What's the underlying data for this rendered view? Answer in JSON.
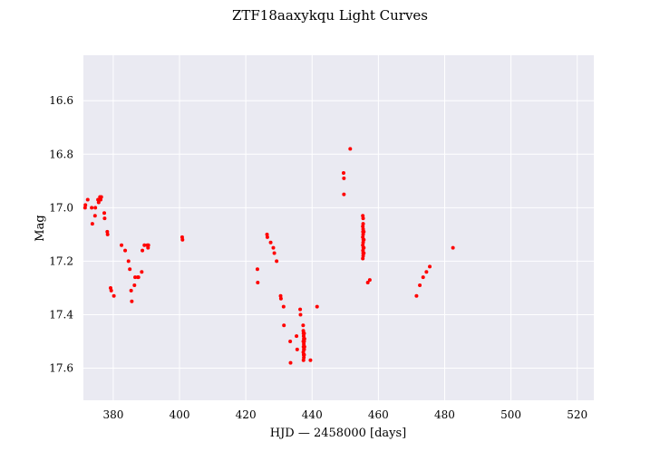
{
  "chart_data": {
    "type": "scatter",
    "title": "ZTF18aaxykqu Light Curves",
    "xlabel": "HJD — 2458000 [days]",
    "ylabel": "Mag",
    "xlim": [
      371,
      525
    ],
    "ylim": [
      17.72,
      16.43
    ],
    "y_inverted": true,
    "grid": true,
    "background": "#eaeaf2",
    "grid_color": "#ffffff",
    "marker_color": "#ff0000",
    "xticks": [
      380,
      400,
      420,
      440,
      460,
      480,
      500,
      520
    ],
    "yticks": [
      16.6,
      16.8,
      17.0,
      17.2,
      17.4,
      17.6
    ],
    "xtick_labels": [
      "380",
      "400",
      "420",
      "440",
      "460",
      "480",
      "500",
      "520"
    ],
    "ytick_labels": [
      "16.6",
      "16.8",
      "17.0",
      "17.2",
      "17.4",
      "17.6"
    ],
    "series": [
      {
        "points": [
          [
            371.5,
            17.0
          ],
          [
            371.6,
            16.99
          ],
          [
            372.3,
            16.97
          ],
          [
            373.5,
            17.0
          ],
          [
            373.7,
            17.06
          ],
          [
            374.5,
            17.03
          ],
          [
            374.6,
            17.0
          ],
          [
            375.4,
            16.97
          ],
          [
            375.6,
            16.98
          ],
          [
            376.0,
            16.96
          ],
          [
            376.2,
            16.97
          ],
          [
            376.4,
            16.96
          ],
          [
            377.3,
            17.02
          ],
          [
            377.4,
            17.04
          ],
          [
            378.2,
            17.09
          ],
          [
            378.3,
            17.1
          ],
          [
            379.2,
            17.3
          ],
          [
            379.4,
            17.31
          ],
          [
            380.2,
            17.33
          ],
          [
            382.5,
            17.14
          ],
          [
            383.6,
            17.16
          ],
          [
            384.6,
            17.2
          ],
          [
            385.0,
            17.23
          ],
          [
            385.4,
            17.31
          ],
          [
            385.6,
            17.35
          ],
          [
            386.4,
            17.29
          ],
          [
            386.6,
            17.26
          ],
          [
            387.4,
            17.26
          ],
          [
            387.6,
            17.26
          ],
          [
            388.6,
            17.24
          ],
          [
            388.8,
            17.16
          ],
          [
            389.4,
            17.14
          ],
          [
            390.3,
            17.14
          ],
          [
            390.5,
            17.15
          ],
          [
            390.6,
            17.14
          ],
          [
            400.8,
            17.11
          ],
          [
            400.9,
            17.12
          ],
          [
            423.5,
            17.23
          ],
          [
            423.6,
            17.28
          ],
          [
            426.4,
            17.1
          ],
          [
            426.5,
            17.11
          ],
          [
            427.5,
            17.13
          ],
          [
            428.3,
            17.15
          ],
          [
            428.6,
            17.17
          ],
          [
            429.3,
            17.2
          ],
          [
            430.5,
            17.33
          ],
          [
            430.6,
            17.34
          ],
          [
            431.4,
            17.37
          ],
          [
            431.5,
            17.44
          ],
          [
            433.4,
            17.5
          ],
          [
            433.5,
            17.58
          ],
          [
            435.3,
            17.48
          ],
          [
            435.5,
            17.53
          ],
          [
            436.4,
            17.38
          ],
          [
            436.5,
            17.4
          ],
          [
            437.3,
            17.44
          ],
          [
            437.35,
            17.46
          ],
          [
            437.4,
            17.47
          ],
          [
            437.45,
            17.48
          ],
          [
            437.5,
            17.49
          ],
          [
            437.35,
            17.5
          ],
          [
            437.5,
            17.51
          ],
          [
            437.4,
            17.52
          ],
          [
            437.5,
            17.53
          ],
          [
            437.35,
            17.54
          ],
          [
            437.45,
            17.55
          ],
          [
            437.5,
            17.56
          ],
          [
            437.4,
            17.57
          ],
          [
            437.6,
            17.47
          ],
          [
            437.6,
            17.5
          ],
          [
            437.6,
            17.53
          ],
          [
            437.6,
            17.55
          ],
          [
            437.7,
            17.49
          ],
          [
            437.7,
            17.52
          ],
          [
            439.5,
            17.57
          ],
          [
            441.5,
            17.37
          ],
          [
            449.5,
            16.87
          ],
          [
            449.6,
            16.89
          ],
          [
            449.6,
            16.95
          ],
          [
            451.5,
            16.78
          ],
          [
            455.3,
            17.03
          ],
          [
            455.4,
            17.04
          ],
          [
            455.4,
            17.06
          ],
          [
            455.3,
            17.07
          ],
          [
            455.4,
            17.08
          ],
          [
            455.35,
            17.09
          ],
          [
            455.4,
            17.1
          ],
          [
            455.3,
            17.11
          ],
          [
            455.45,
            17.12
          ],
          [
            455.4,
            17.13
          ],
          [
            455.3,
            17.14
          ],
          [
            455.45,
            17.15
          ],
          [
            455.35,
            17.16
          ],
          [
            455.4,
            17.17
          ],
          [
            455.4,
            17.18
          ],
          [
            455.3,
            17.19
          ],
          [
            455.6,
            17.09
          ],
          [
            455.6,
            17.12
          ],
          [
            455.6,
            17.15
          ],
          [
            455.6,
            17.17
          ],
          [
            456.8,
            17.28
          ],
          [
            457.4,
            17.27
          ],
          [
            471.5,
            17.33
          ],
          [
            472.5,
            17.29
          ],
          [
            473.5,
            17.26
          ],
          [
            474.5,
            17.24
          ],
          [
            475.5,
            17.22
          ],
          [
            482.5,
            17.15
          ]
        ]
      }
    ]
  }
}
